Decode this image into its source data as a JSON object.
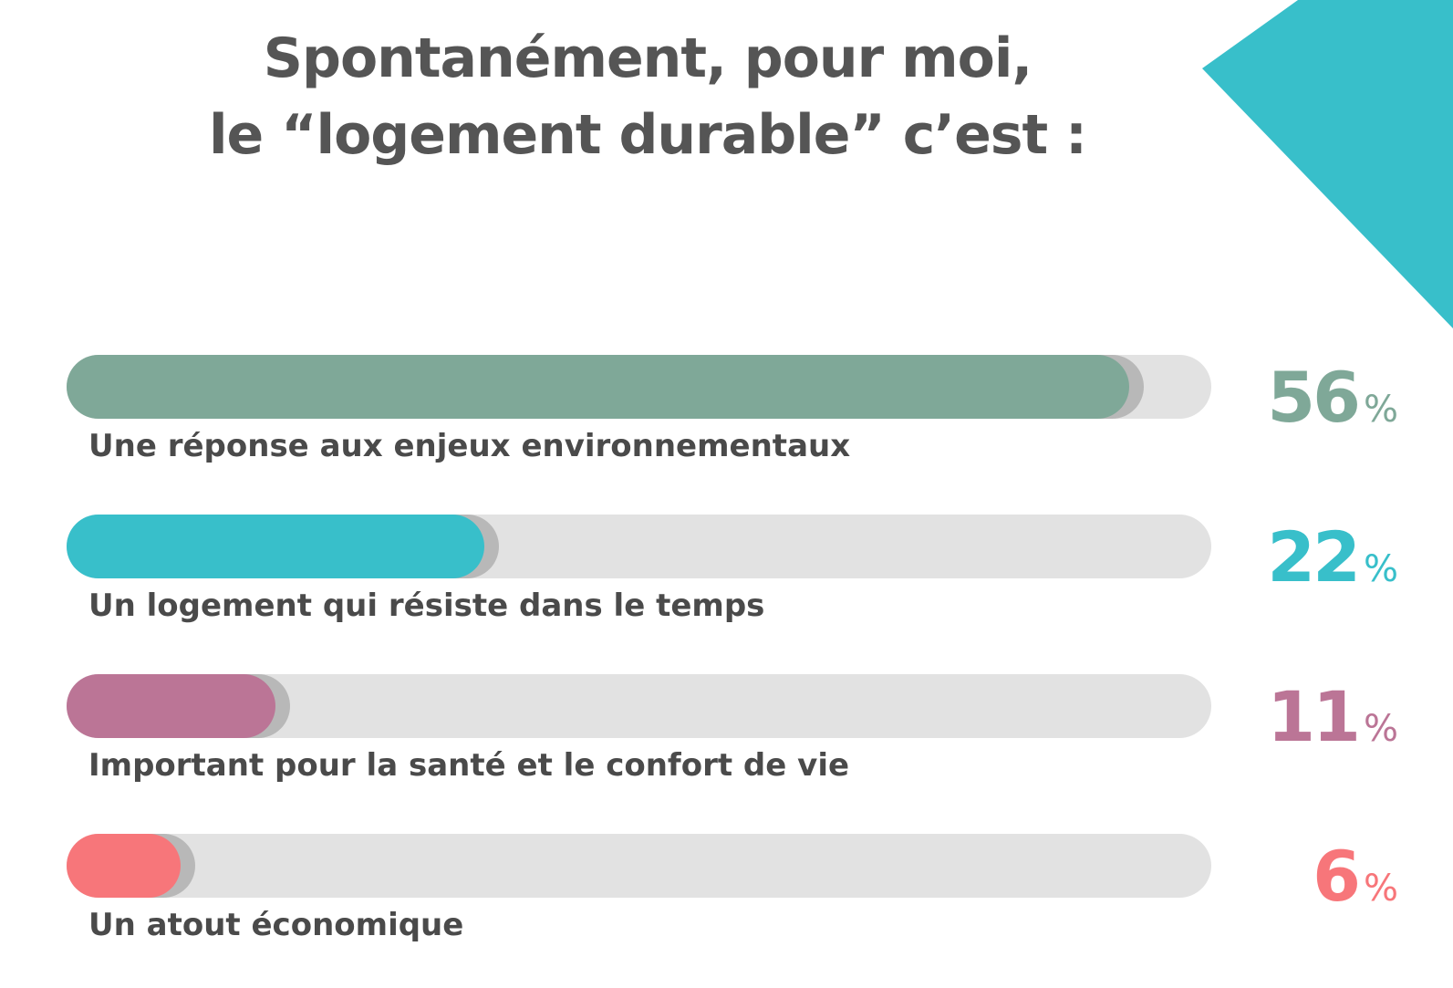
{
  "chart_data": {
    "type": "bar",
    "title_lines": [
      "Spontanément, pour moi,",
      "le “logement durable” c’est :"
    ],
    "categories": [
      "Une réponse aux enjeux environnementaux",
      "Un logement qui résiste dans le temps",
      "Important pour la santé et le confort de vie",
      "Un atout économique"
    ],
    "values": [
      56,
      22,
      11,
      6
    ],
    "value_labels": [
      "56",
      "22",
      "11",
      "6"
    ],
    "unit": "%",
    "bar_colors": [
      "#7fa898",
      "#38bfca",
      "#bb7596",
      "#f7767a"
    ],
    "track_color": "#e2e2e2",
    "corner_color": "#38bfca",
    "orientation": "horizontal"
  }
}
